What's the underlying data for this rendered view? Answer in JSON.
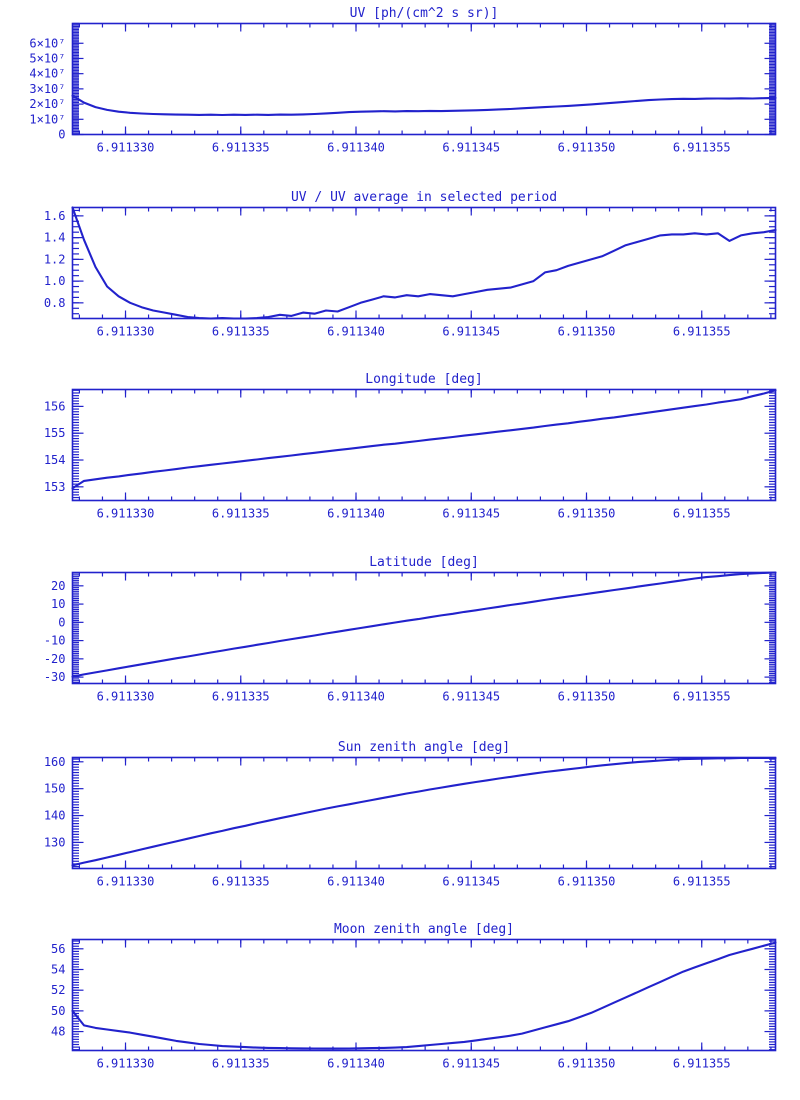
{
  "page": {
    "background": "#ffffff",
    "accent_color": "#2222cc"
  },
  "chart_data": [
    {
      "type": "line",
      "title": "UV [ph/(cm^2 s sr)]",
      "x": {
        "min": 6.9113277,
        "max": 6.9113582,
        "major_ticks": [
          6.91133,
          6.911335,
          6.91134,
          6.911345,
          6.91135,
          6.911355
        ],
        "tick_labels": [
          "6.911330",
          "6.911335",
          "6.911340",
          "6.911345",
          "6.911350",
          "6.911355"
        ],
        "minor_step": 1e-06
      },
      "y": {
        "min": 0,
        "max": 7.3,
        "major_ticks": [
          0,
          1,
          2,
          3,
          4,
          5,
          6
        ],
        "tick_labels": [
          "0",
          "1×10⁷",
          "2×10⁷",
          "3×10⁷",
          "4×10⁷",
          "5×10⁷",
          "6×10⁷"
        ],
        "minor_step": 0.1,
        "value_scale_note": "values in units of 10^7 ph/(cm^2 s sr)"
      },
      "values": [
        2.55,
        2.1,
        1.8,
        1.62,
        1.5,
        1.43,
        1.38,
        1.35,
        1.33,
        1.31,
        1.3,
        1.29,
        1.3,
        1.28,
        1.3,
        1.29,
        1.3,
        1.29,
        1.31,
        1.3,
        1.32,
        1.35,
        1.39,
        1.43,
        1.47,
        1.5,
        1.52,
        1.53,
        1.52,
        1.54,
        1.53,
        1.55,
        1.54,
        1.56,
        1.57,
        1.59,
        1.62,
        1.65,
        1.68,
        1.72,
        1.76,
        1.8,
        1.84,
        1.88,
        1.93,
        1.98,
        2.03,
        2.09,
        2.15,
        2.21,
        2.26,
        2.3,
        2.33,
        2.35,
        2.34,
        2.36,
        2.37,
        2.36,
        2.38,
        2.37,
        2.39,
        2.41
      ]
    },
    {
      "type": "line",
      "title": "UV / UV average in selected period",
      "x": {
        "min": 6.9113277,
        "max": 6.9113582,
        "major_ticks": [
          6.91133,
          6.911335,
          6.91134,
          6.911345,
          6.91135,
          6.911355
        ],
        "tick_labels": [
          "6.911330",
          "6.911335",
          "6.911340",
          "6.911345",
          "6.911350",
          "6.911355"
        ],
        "minor_step": 1e-06
      },
      "y": {
        "min": 0.656,
        "max": 1.677,
        "major_ticks": [
          0.8,
          1.0,
          1.2,
          1.4,
          1.6
        ],
        "tick_labels": [
          "0.8",
          "1.0",
          "1.2",
          "1.4",
          "1.6"
        ],
        "minor_step": 0.05
      },
      "values": [
        1.7,
        1.38,
        1.13,
        0.95,
        0.86,
        0.8,
        0.76,
        0.73,
        0.71,
        0.69,
        0.67,
        0.66,
        0.65,
        0.66,
        0.65,
        0.65,
        0.66,
        0.67,
        0.69,
        0.68,
        0.71,
        0.7,
        0.73,
        0.72,
        0.76,
        0.8,
        0.83,
        0.86,
        0.85,
        0.87,
        0.86,
        0.88,
        0.87,
        0.86,
        0.88,
        0.9,
        0.92,
        0.93,
        0.94,
        0.97,
        1.0,
        1.08,
        1.1,
        1.14,
        1.17,
        1.2,
        1.23,
        1.28,
        1.33,
        1.36,
        1.39,
        1.42,
        1.43,
        1.43,
        1.44,
        1.43,
        1.44,
        1.37,
        1.42,
        1.44,
        1.45,
        1.47
      ]
    },
    {
      "type": "line",
      "title": "Longitude [deg]",
      "x": {
        "min": 6.9113277,
        "max": 6.9113582,
        "major_ticks": [
          6.91133,
          6.911335,
          6.91134,
          6.911345,
          6.91135,
          6.911355
        ],
        "tick_labels": [
          "6.911330",
          "6.911335",
          "6.911340",
          "6.911345",
          "6.911350",
          "6.911355"
        ],
        "minor_step": 1e-06
      },
      "y": {
        "min": 152.49,
        "max": 156.63,
        "major_ticks": [
          153,
          154,
          155,
          156
        ],
        "tick_labels": [
          "153",
          "154",
          "155",
          "156"
        ],
        "minor_step": 0.1
      },
      "values": [
        152.95,
        153.22,
        153.28,
        153.34,
        153.39,
        153.45,
        153.5,
        153.56,
        153.61,
        153.66,
        153.72,
        153.77,
        153.82,
        153.87,
        153.92,
        153.97,
        154.02,
        154.07,
        154.12,
        154.17,
        154.22,
        154.27,
        154.32,
        154.37,
        154.42,
        154.47,
        154.52,
        154.57,
        154.61,
        154.66,
        154.71,
        154.76,
        154.81,
        154.86,
        154.91,
        154.96,
        155.01,
        155.06,
        155.11,
        155.16,
        155.21,
        155.27,
        155.32,
        155.37,
        155.43,
        155.48,
        155.54,
        155.59,
        155.65,
        155.71,
        155.77,
        155.83,
        155.89,
        155.95,
        156.01,
        156.07,
        156.14,
        156.2,
        156.27,
        156.38,
        156.48,
        156.6
      ]
    },
    {
      "type": "line",
      "title": "Latitude [deg]",
      "x": {
        "min": 6.9113277,
        "max": 6.9113582,
        "major_ticks": [
          6.91133,
          6.911335,
          6.91134,
          6.911345,
          6.91135,
          6.911355
        ],
        "tick_labels": [
          "6.911330",
          "6.911335",
          "6.911340",
          "6.911345",
          "6.911350",
          "6.911355"
        ],
        "minor_step": 1e-06
      },
      "y": {
        "min": -33.5,
        "max": 27.3,
        "major_ticks": [
          -30,
          -20,
          -10,
          0,
          10,
          20
        ],
        "tick_labels": [
          "-30",
          "-20",
          "-10",
          "0",
          "10",
          "20"
        ],
        "minor_step": 1
      },
      "values": [
        -29.8,
        -28.5,
        -27.4,
        -26.3,
        -25.2,
        -24.1,
        -23.0,
        -21.9,
        -20.8,
        -19.7,
        -18.7,
        -17.6,
        -16.5,
        -15.5,
        -14.4,
        -13.4,
        -12.3,
        -11.3,
        -10.2,
        -9.2,
        -8.2,
        -7.2,
        -6.1,
        -5.1,
        -4.1,
        -3.1,
        -2.1,
        -1.1,
        -0.1,
        0.9,
        1.8,
        2.8,
        3.8,
        4.7,
        5.7,
        6.6,
        7.6,
        8.5,
        9.5,
        10.4,
        11.3,
        12.3,
        13.2,
        14.1,
        15.0,
        15.9,
        16.8,
        17.7,
        18.6,
        19.5,
        20.4,
        21.3,
        22.2,
        23.1,
        24.0,
        24.8,
        25.3,
        25.9,
        26.4,
        26.8,
        27.1,
        27.3
      ]
    },
    {
      "type": "line",
      "title": "Sun zenith angle [deg]",
      "x": {
        "min": 6.9113277,
        "max": 6.9113582,
        "major_ticks": [
          6.91133,
          6.911335,
          6.91134,
          6.911345,
          6.91135,
          6.911355
        ],
        "tick_labels": [
          "6.911330",
          "6.911335",
          "6.911340",
          "6.911345",
          "6.911350",
          "6.911355"
        ],
        "minor_step": 1e-06
      },
      "y": {
        "min": 120.3,
        "max": 161.6,
        "major_ticks": [
          130,
          140,
          150,
          160
        ],
        "tick_labels": [
          "130",
          "140",
          "150",
          "160"
        ],
        "minor_step": 1
      },
      "values": [
        121.5,
        122.5,
        123.4,
        124.4,
        125.4,
        126.4,
        127.4,
        128.4,
        129.4,
        130.4,
        131.4,
        132.4,
        133.4,
        134.3,
        135.3,
        136.2,
        137.2,
        138.1,
        139.0,
        139.9,
        140.8,
        141.7,
        142.6,
        143.4,
        144.2,
        145.0,
        145.8,
        146.6,
        147.4,
        148.2,
        148.9,
        149.7,
        150.4,
        151.1,
        151.8,
        152.5,
        153.1,
        153.8,
        154.4,
        155.0,
        155.6,
        156.2,
        156.7,
        157.2,
        157.7,
        158.2,
        158.7,
        159.1,
        159.5,
        159.9,
        160.2,
        160.5,
        160.8,
        161.0,
        161.1,
        161.2,
        161.3,
        161.3,
        161.4,
        161.4,
        161.4,
        161.4
      ]
    },
    {
      "type": "line",
      "title": "Moon zenith angle [deg]",
      "x": {
        "min": 6.9113277,
        "max": 6.9113582,
        "major_ticks": [
          6.91133,
          6.911335,
          6.91134,
          6.911345,
          6.91135,
          6.911355
        ],
        "tick_labels": [
          "6.911330",
          "6.911335",
          "6.911340",
          "6.911345",
          "6.911350",
          "6.911355"
        ],
        "minor_step": 1e-06
      },
      "y": {
        "min": 46.17,
        "max": 56.9,
        "major_ticks": [
          48,
          50,
          52,
          54,
          56
        ],
        "tick_labels": [
          "48",
          "50",
          "52",
          "54",
          "56"
        ],
        "minor_step": 0.25
      },
      "values": [
        50.0,
        48.6,
        48.35,
        48.2,
        48.05,
        47.9,
        47.7,
        47.5,
        47.3,
        47.1,
        46.95,
        46.8,
        46.7,
        46.6,
        46.55,
        46.5,
        46.45,
        46.42,
        46.4,
        46.38,
        46.37,
        46.36,
        46.35,
        46.35,
        46.36,
        46.38,
        46.4,
        46.42,
        46.45,
        46.5,
        46.6,
        46.7,
        46.8,
        46.9,
        47.0,
        47.15,
        47.3,
        47.45,
        47.6,
        47.8,
        48.1,
        48.4,
        48.7,
        49.0,
        49.4,
        49.8,
        50.3,
        50.8,
        51.3,
        51.8,
        52.3,
        52.8,
        53.3,
        53.8,
        54.2,
        54.6,
        55.0,
        55.4,
        55.7,
        56.0,
        56.3,
        56.6
      ]
    }
  ]
}
